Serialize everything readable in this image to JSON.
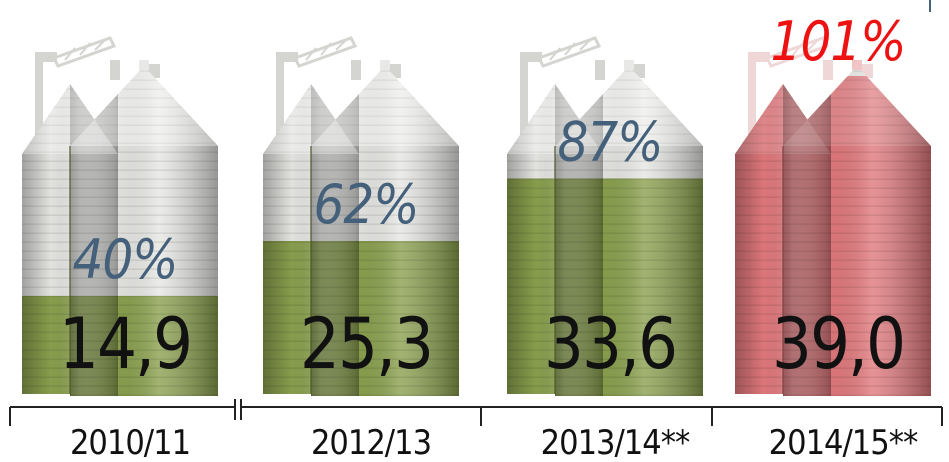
{
  "chart_data": {
    "type": "bar",
    "categories": [
      "2010/11",
      "2012/13",
      "2013/14**",
      "2014/15**"
    ],
    "values": [
      14.9,
      25.3,
      33.6,
      39.0
    ],
    "value_labels": [
      "14,9",
      "25,3",
      "33,6",
      "39,0"
    ],
    "fill_percent": [
      40,
      62,
      87,
      101
    ],
    "fill_labels": [
      "40%",
      "62%",
      "87%",
      "101%"
    ],
    "ylim": [
      0,
      100
    ],
    "axis_break_between": [
      "2010/11",
      "2012/13"
    ],
    "grid": false,
    "legend": "none"
  },
  "colors": {
    "fill_normal": "#8aa04e",
    "fill_over": "#e0787c",
    "empty": "#e6e6e3",
    "pct_normal": "#44607a",
    "pct_over": "#ee1111",
    "value_text": "#111111"
  },
  "icons": [
    "grain-silo-icon"
  ]
}
